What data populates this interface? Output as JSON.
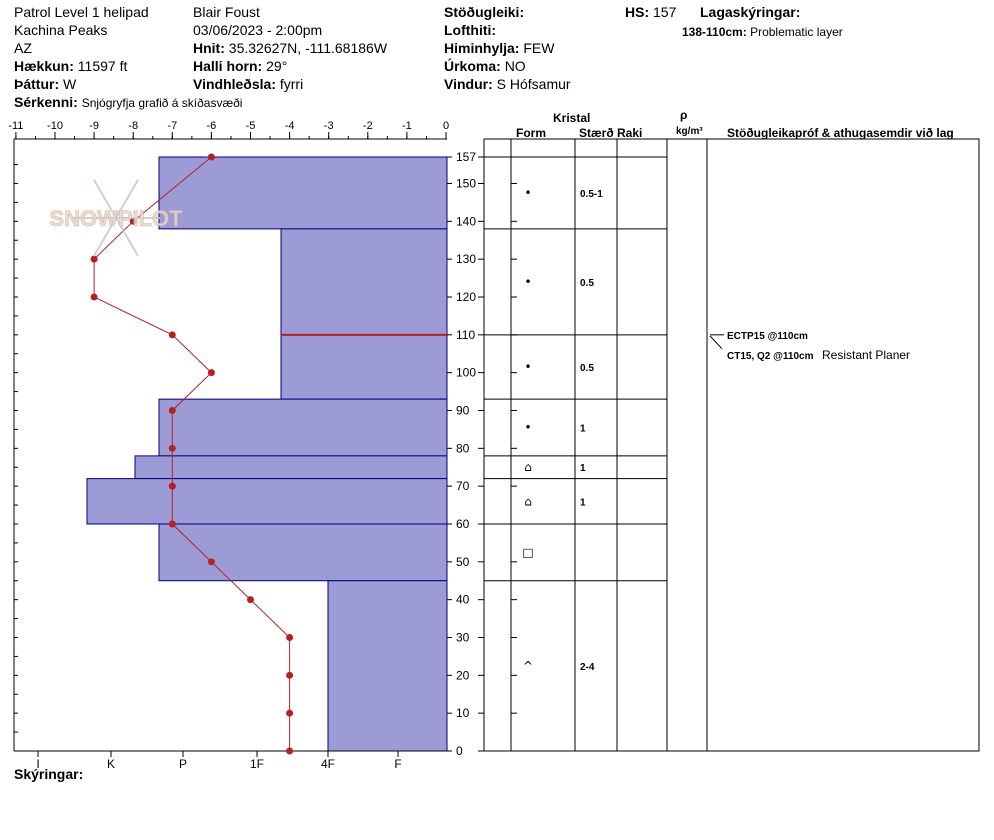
{
  "header": {
    "location": "Patrol Level 1 helipad",
    "area": "Kachina Peaks",
    "state": "AZ",
    "elevation_label": "Hækkun:",
    "elevation_value": "11597 ft",
    "aspect_label": "Þáttur:",
    "aspect_value": "W",
    "features_label": "Sérkenni:",
    "features_value": "Snjógryfja grafið á skíðasvæði",
    "observer": "Blair Foust",
    "datetime": "03/06/2023 - 2:00pm",
    "coords_label": "Hnit:",
    "coords_value": "35.32627N, -111.68186W",
    "slope_label": "Halli horn:",
    "slope_value": "29°",
    "wind_loading_label": "Vindhleðsla:",
    "wind_loading_value": "fyrri",
    "stability_label": "Stöðugleiki:",
    "air_temp_label": "Lofthiti:",
    "sky_label": "Himinhylja:",
    "sky_value": "FEW",
    "precip_label": "Úrkoma:",
    "precip_value": "NO",
    "wind_label": "Vindur:",
    "wind_value": "S Hófsamur",
    "hs_label": "HS:",
    "hs_value": "157",
    "legend_label": "Lagaskýringar:",
    "legend_item_range": "138-110cm:",
    "legend_item_text": "Problematic layer"
  },
  "watermark": "SNOWPILOT",
  "table_headers": {
    "crystal": "Kristal",
    "form": "Form",
    "size": "Stærð",
    "moisture": "Raki",
    "density_symbol": "ρ",
    "density_unit": "kg/m³",
    "tests": "Stöðugleikapróf & athugasemdir við lag"
  },
  "footer": {
    "legend_label": "Skýringar:"
  },
  "colors": {
    "layer_fill": "#9d9bd6",
    "layer_stroke": "#00007a",
    "temp_line": "#b22222",
    "problem_line": "#b22222"
  },
  "chart_data": {
    "type": "area",
    "temp_axis": {
      "ticks": [
        -11,
        -10,
        -9,
        -8,
        -7,
        -6,
        -5,
        -4,
        -3,
        -2,
        -1,
        0
      ],
      "range": [
        -11,
        0
      ]
    },
    "hardness_axis": {
      "labels": [
        "I",
        "K",
        "P",
        "1F",
        "4F",
        "F"
      ]
    },
    "height_axis": {
      "ticks": [
        0,
        10,
        20,
        30,
        40,
        50,
        60,
        70,
        80,
        90,
        100,
        110,
        120,
        130,
        140,
        150,
        157
      ],
      "range": [
        0,
        157
      ]
    },
    "hardness_layers": [
      {
        "top": 157,
        "bottom": 138,
        "hardness": "P-"
      },
      {
        "top": 138,
        "bottom": 93,
        "hardness": "1F+"
      },
      {
        "top": 93,
        "bottom": 78,
        "hardness": "P-"
      },
      {
        "top": 78,
        "bottom": 72,
        "hardness": "K+"
      },
      {
        "top": 72,
        "bottom": 60,
        "hardness": "K-"
      },
      {
        "top": 60,
        "bottom": 45,
        "hardness": "P-"
      },
      {
        "top": 45,
        "bottom": 0,
        "hardness": "4F"
      }
    ],
    "temperature_profile": [
      {
        "height": 157,
        "temp": -6
      },
      {
        "height": 140,
        "temp": -8
      },
      {
        "height": 130,
        "temp": -9
      },
      {
        "height": 120,
        "temp": -9
      },
      {
        "height": 110,
        "temp": -7
      },
      {
        "height": 100,
        "temp": -6
      },
      {
        "height": 90,
        "temp": -7
      },
      {
        "height": 80,
        "temp": -7
      },
      {
        "height": 70,
        "temp": -7
      },
      {
        "height": 60,
        "temp": -7
      },
      {
        "height": 50,
        "temp": -6
      },
      {
        "height": 40,
        "temp": -5
      },
      {
        "height": 30,
        "temp": -4
      },
      {
        "height": 20,
        "temp": -4
      },
      {
        "height": 10,
        "temp": -4
      },
      {
        "height": 0,
        "temp": -4
      }
    ],
    "problem_layer_height": 110,
    "crystal_rows": [
      {
        "top": 157,
        "bottom": 138,
        "form": "•",
        "size": "0.5-1"
      },
      {
        "top": 138,
        "bottom": 110,
        "form": "•",
        "size": "0.5"
      },
      {
        "top": 110,
        "bottom": 93,
        "form": "•",
        "size": "0.5"
      },
      {
        "top": 93,
        "bottom": 78,
        "form": "•",
        "size": "1"
      },
      {
        "top": 78,
        "bottom": 72,
        "form": "⌂",
        "size": "1"
      },
      {
        "top": 72,
        "bottom": 60,
        "form": "⌂",
        "size": "1"
      },
      {
        "top": 60,
        "bottom": 45,
        "form": "□",
        "size": ""
      },
      {
        "top": 45,
        "bottom": 0,
        "form": "^",
        "size": "2-4"
      }
    ],
    "stability_tests": [
      {
        "height": 110,
        "label": "ECTP15 @110cm",
        "comment": ""
      },
      {
        "height": 110,
        "label": "CT15, Q2 @110cm",
        "comment": "Resistant Planer"
      }
    ]
  }
}
